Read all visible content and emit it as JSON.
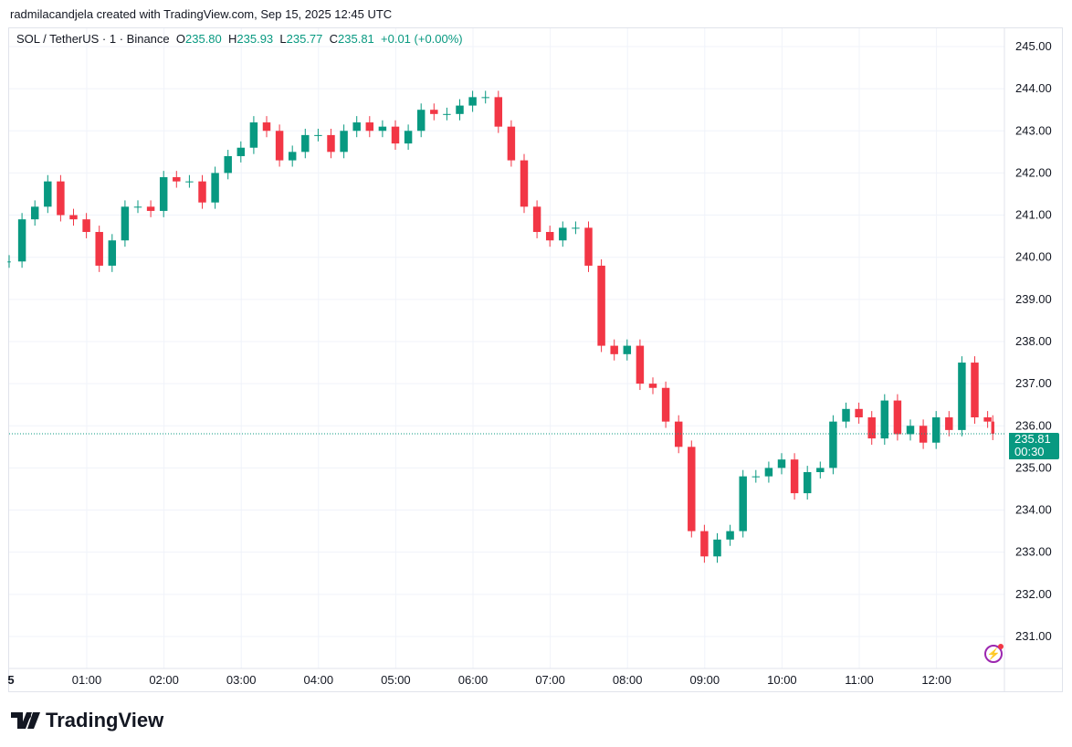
{
  "credit": "radmilacandjela created with TradingView.com, Sep 15, 2025 12:45 UTC",
  "legend": {
    "symbol": "SOL / TetherUS · 1 · Binance",
    "o_label": "O",
    "o": "235.80",
    "h_label": "H",
    "h": "235.93",
    "l_label": "L",
    "l": "235.77",
    "c_label": "C",
    "c": "235.81",
    "change": "+0.01 (+0.00%)"
  },
  "price_label": {
    "price": "235.81",
    "countdown": "00:30"
  },
  "logo_text": "TradingView",
  "colors": {
    "up": "#089981",
    "down": "#f23645",
    "grid": "#f0f3fa",
    "accent": "#089981"
  },
  "icons": [
    "tradingview-logo-icon",
    "lightning-icon"
  ],
  "chart_data": {
    "type": "candlestick",
    "symbol": "SOL/USDT",
    "interval": "1m",
    "ylim": [
      230.5,
      245.3
    ],
    "yticks": [
      "245.00",
      "244.00",
      "243.00",
      "242.00",
      "241.00",
      "240.00",
      "239.00",
      "238.00",
      "237.00",
      "236.00",
      "235.00",
      "234.00",
      "233.00",
      "232.00",
      "231.00"
    ],
    "xticks": [
      "5",
      "01:00",
      "02:00",
      "03:00",
      "04:00",
      "05:00",
      "06:00",
      "07:00",
      "08:00",
      "09:00",
      "10:00",
      "11:00",
      "12:00"
    ],
    "last_price": 235.81,
    "approx_closes": [
      [
        "00:00",
        239.9
      ],
      [
        "00:10",
        240.9
      ],
      [
        "00:20",
        241.2
      ],
      [
        "00:30",
        241.8
      ],
      [
        "00:40",
        241.0
      ],
      [
        "00:50",
        240.9
      ],
      [
        "01:00",
        240.6
      ],
      [
        "01:10",
        239.8
      ],
      [
        "01:20",
        240.4
      ],
      [
        "01:30",
        241.2
      ],
      [
        "01:40",
        241.2
      ],
      [
        "01:50",
        241.1
      ],
      [
        "02:00",
        241.9
      ],
      [
        "02:10",
        241.8
      ],
      [
        "02:20",
        241.8
      ],
      [
        "02:30",
        241.3
      ],
      [
        "02:40",
        242.0
      ],
      [
        "02:50",
        242.4
      ],
      [
        "03:00",
        242.6
      ],
      [
        "03:10",
        243.2
      ],
      [
        "03:20",
        243.0
      ],
      [
        "03:30",
        242.3
      ],
      [
        "03:40",
        242.5
      ],
      [
        "03:50",
        242.9
      ],
      [
        "04:00",
        242.9
      ],
      [
        "04:10",
        242.5
      ],
      [
        "04:20",
        243.0
      ],
      [
        "04:30",
        243.2
      ],
      [
        "04:40",
        243.0
      ],
      [
        "04:50",
        243.1
      ],
      [
        "05:00",
        242.7
      ],
      [
        "05:10",
        243.0
      ],
      [
        "05:20",
        243.5
      ],
      [
        "05:30",
        243.4
      ],
      [
        "05:40",
        243.4
      ],
      [
        "05:50",
        243.6
      ],
      [
        "06:00",
        243.8
      ],
      [
        "06:10",
        243.8
      ],
      [
        "06:20",
        243.1
      ],
      [
        "06:30",
        242.3
      ],
      [
        "06:40",
        241.2
      ],
      [
        "06:50",
        240.6
      ],
      [
        "07:00",
        240.4
      ],
      [
        "07:10",
        240.7
      ],
      [
        "07:20",
        240.7
      ],
      [
        "07:30",
        239.8
      ],
      [
        "07:40",
        237.9
      ],
      [
        "07:50",
        237.7
      ],
      [
        "08:00",
        237.9
      ],
      [
        "08:10",
        237.0
      ],
      [
        "08:20",
        236.9
      ],
      [
        "08:30",
        236.1
      ],
      [
        "08:40",
        235.5
      ],
      [
        "08:50",
        233.5
      ],
      [
        "09:00",
        232.9
      ],
      [
        "09:10",
        233.3
      ],
      [
        "09:20",
        233.5
      ],
      [
        "09:30",
        234.8
      ],
      [
        "09:40",
        234.8
      ],
      [
        "09:50",
        235.0
      ],
      [
        "10:00",
        235.2
      ],
      [
        "10:10",
        234.4
      ],
      [
        "10:20",
        234.9
      ],
      [
        "10:30",
        235.0
      ],
      [
        "10:40",
        236.1
      ],
      [
        "10:50",
        236.4
      ],
      [
        "11:00",
        236.2
      ],
      [
        "11:10",
        235.7
      ],
      [
        "11:20",
        236.6
      ],
      [
        "11:30",
        235.8
      ],
      [
        "11:40",
        236.0
      ],
      [
        "11:50",
        235.6
      ],
      [
        "12:00",
        236.2
      ],
      [
        "12:10",
        235.9
      ],
      [
        "12:20",
        237.5
      ],
      [
        "12:30",
        236.2
      ],
      [
        "12:40",
        236.1
      ],
      [
        "12:44",
        235.81
      ]
    ]
  }
}
